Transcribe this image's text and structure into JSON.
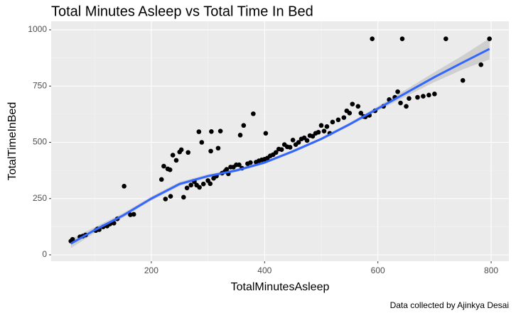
{
  "chart_data": {
    "type": "scatter",
    "title": "Total Minutes Asleep vs Total Time In Bed",
    "x_label": "TotalMinutesAsleep",
    "y_label": "TotalTimeInBed",
    "caption": "Data collected by Ajinkya Desai",
    "xlim": [
      23.2,
      831.3
    ],
    "ylim": [
      -28.4,
      1037.9
    ],
    "xticks": [
      200,
      400,
      600,
      800
    ],
    "yticks": [
      0,
      250,
      500,
      750,
      1000
    ],
    "x_minor_breaks": [
      100,
      300,
      500,
      700
    ],
    "y_minor_breaks": [
      125,
      375,
      625,
      875
    ],
    "grid": true,
    "point_color": "#000000",
    "smooth_color": "#3366ff",
    "ribbon_color": "#c8c8c8",
    "points": {
      "x": [
        58,
        61,
        74,
        79,
        84,
        102,
        105,
        108,
        115,
        122,
        127,
        134,
        140,
        152,
        163,
        169,
        218,
        222,
        225,
        229,
        233,
        234,
        238,
        244,
        250,
        253,
        257,
        263,
        265,
        270,
        276,
        280,
        284,
        285,
        289,
        292,
        300,
        304,
        305,
        306,
        310,
        315,
        318,
        322,
        325,
        330,
        333,
        336,
        340,
        345,
        350,
        355,
        357,
        360,
        363,
        370,
        380,
        375,
        385,
        390,
        395,
        400,
        402,
        405,
        410,
        415,
        420,
        425,
        430,
        435,
        440,
        445,
        450,
        455,
        460,
        465,
        470,
        475,
        480,
        485,
        490,
        495,
        500,
        505,
        510,
        515,
        520,
        530,
        540,
        545,
        550,
        555,
        565,
        570,
        575,
        578,
        585,
        590,
        595,
        610,
        620,
        630,
        635,
        640,
        643,
        650,
        655,
        670,
        680,
        690,
        700,
        720,
        750,
        782,
        797
      ],
      "y": [
        61,
        69,
        80,
        83,
        88,
        108,
        115,
        112,
        124,
        128,
        137,
        141,
        160,
        305,
        178,
        180,
        335,
        394,
        248,
        382,
        378,
        260,
        443,
        420,
        457,
        467,
        256,
        297,
        455,
        310,
        325,
        310,
        547,
        300,
        500,
        315,
        330,
        316,
        461,
        548,
        340,
        350,
        474,
        550,
        363,
        371,
        380,
        360,
        390,
        390,
        400,
        400,
        532,
        385,
        575,
        405,
        627,
        410,
        412,
        418,
        422,
        425,
        540,
        430,
        440,
        445,
        455,
        470,
        468,
        490,
        480,
        478,
        510,
        490,
        500,
        515,
        520,
        508,
        530,
        527,
        540,
        545,
        575,
        550,
        570,
        540,
        590,
        600,
        610,
        640,
        630,
        670,
        660,
        630,
        615,
        613,
        620,
        960,
        640,
        660,
        690,
        700,
        725,
        675,
        960,
        660,
        695,
        700,
        705,
        710,
        715,
        960,
        775,
        845,
        960
      ]
    },
    "smooth": {
      "x": [
        58,
        100,
        150,
        200,
        250,
        300,
        350,
        400,
        450,
        500,
        550,
        600,
        650,
        700,
        750,
        797
      ],
      "y": [
        50,
        110,
        175,
        250,
        315,
        350,
        375,
        410,
        460,
        515,
        580,
        650,
        720,
        790,
        855,
        915
      ],
      "lower": [
        30,
        97,
        165,
        241,
        306,
        342,
        368,
        404,
        454,
        509,
        573,
        640,
        705,
        768,
        824,
        868
      ],
      "upper": [
        70,
        123,
        185,
        259,
        324,
        358,
        382,
        416,
        466,
        521,
        587,
        660,
        735,
        812,
        886,
        962
      ]
    }
  }
}
